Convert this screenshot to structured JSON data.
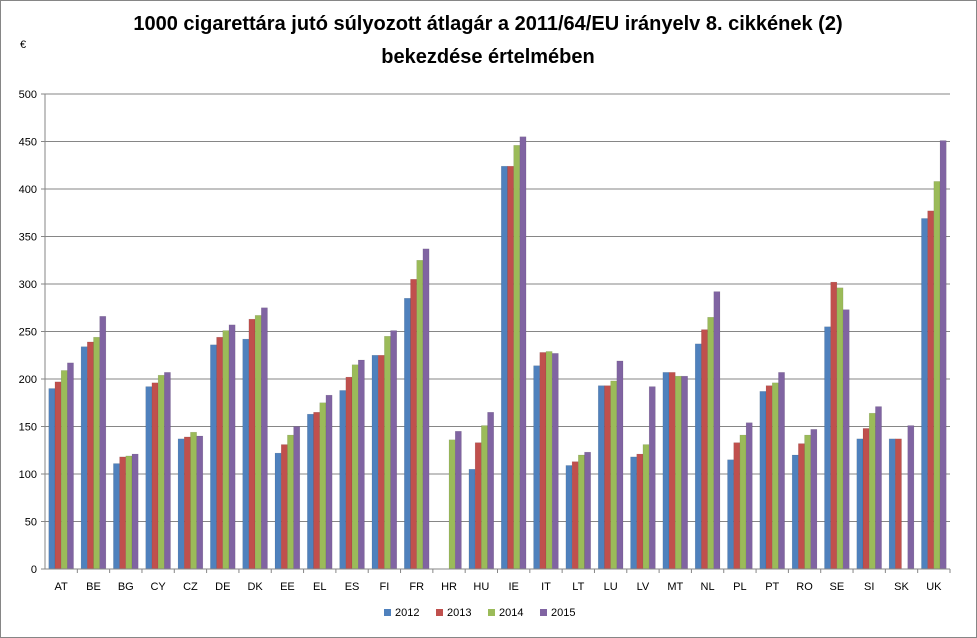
{
  "chart_data": {
    "type": "bar",
    "title_line1": "1000 cigarettára jutó súlyozott átlagár a 2011/64/EU irányelv 8. cikkének (2)",
    "title_line2": "bekezdése értelmében",
    "ylabel": "€",
    "xlabel": "",
    "ylim": [
      0,
      500
    ],
    "yticks": [
      "0",
      "50",
      "100",
      "150",
      "200",
      "250",
      "300",
      "350",
      "400",
      "450",
      "500"
    ],
    "grid": true,
    "legend_position": "bottom",
    "categories": [
      "AT",
      "BE",
      "BG",
      "CY",
      "CZ",
      "DE",
      "DK",
      "EE",
      "EL",
      "ES",
      "FI",
      "FR",
      "HR",
      "HU",
      "IE",
      "IT",
      "LT",
      "LU",
      "LV",
      "MT",
      "NL",
      "PL",
      "PT",
      "RO",
      "SE",
      "SI",
      "SK",
      "UK"
    ],
    "series": [
      {
        "name": "2012",
        "color": "#4F81BD",
        "values": [
          190,
          234,
          111,
          192,
          137,
          236,
          242,
          122,
          163,
          188,
          225,
          285,
          null,
          105,
          424,
          214,
          109,
          193,
          118,
          207,
          237,
          115,
          187,
          120,
          255,
          137,
          137,
          369
        ]
      },
      {
        "name": "2013",
        "color": "#C0504D",
        "values": [
          197,
          239,
          118,
          196,
          139,
          244,
          263,
          131,
          165,
          202,
          225,
          305,
          null,
          133,
          424,
          228,
          113,
          193,
          121,
          207,
          252,
          133,
          193,
          132,
          302,
          148,
          137,
          377
        ]
      },
      {
        "name": "2014",
        "color": "#9BBB59",
        "values": [
          209,
          244,
          119,
          204,
          144,
          251,
          267,
          141,
          175,
          215,
          245,
          325,
          136,
          151,
          446,
          229,
          120,
          198,
          131,
          203,
          265,
          141,
          196,
          141,
          296,
          164,
          0,
          408
        ]
      },
      {
        "name": "2015",
        "color": "#8064A2",
        "values": [
          217,
          266,
          121,
          207,
          140,
          257,
          275,
          150,
          183,
          220,
          251,
          337,
          145,
          165,
          455,
          227,
          123,
          219,
          192,
          203,
          292,
          154,
          207,
          147,
          273,
          171,
          151,
          451
        ]
      }
    ]
  }
}
